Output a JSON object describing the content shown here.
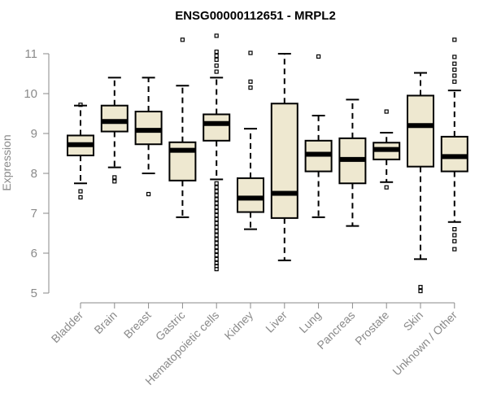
{
  "colors": {
    "box_fill": "#eee8d0",
    "box_stroke": "#000000",
    "axis": "#8a8a8a",
    "text": "#8a8a8a",
    "title": "#000000"
  },
  "chart_data": {
    "type": "boxplot",
    "title": "ENSG00000112651 - MRPL2",
    "xlabel": "",
    "ylabel": "Expression",
    "ylim": [
      5,
      11.5
    ],
    "yticks": [
      5,
      6,
      7,
      8,
      9,
      10,
      11
    ],
    "grid": false,
    "legend": "none",
    "categories": [
      "Bladder",
      "Brain",
      "Breast",
      "Gastric",
      "Hematopoietic cells",
      "Kidney",
      "Liver",
      "Lung",
      "Pancreas",
      "Prostate",
      "Skin",
      "Unknown / Other"
    ],
    "boxes": [
      {
        "category": "Bladder",
        "whisker_low": 7.75,
        "q1": 8.45,
        "median": 8.72,
        "q3": 8.95,
        "whisker_high": 9.7,
        "outliers": [
          7.4,
          7.55,
          9.72
        ]
      },
      {
        "category": "Brain",
        "whisker_low": 8.15,
        "q1": 9.05,
        "median": 9.3,
        "q3": 9.7,
        "whisker_high": 10.4,
        "outliers": [
          7.8,
          7.9
        ]
      },
      {
        "category": "Breast",
        "whisker_low": 8.0,
        "q1": 8.73,
        "median": 9.08,
        "q3": 9.55,
        "whisker_high": 10.4,
        "outliers": [
          7.48
        ]
      },
      {
        "category": "Gastric",
        "whisker_low": 6.9,
        "q1": 7.82,
        "median": 8.58,
        "q3": 8.78,
        "whisker_high": 10.2,
        "outliers": [
          11.35
        ]
      },
      {
        "category": "Hematopoietic cells",
        "whisker_low": 7.85,
        "q1": 8.82,
        "median": 9.25,
        "q3": 9.48,
        "whisker_high": 10.4,
        "outliers": [
          5.6,
          5.68,
          5.75,
          5.85,
          5.95,
          6.05,
          6.15,
          6.25,
          6.35,
          6.45,
          6.55,
          6.65,
          6.75,
          6.85,
          6.95,
          7.05,
          7.15,
          7.25,
          7.35,
          7.45,
          7.55,
          7.65,
          7.75,
          10.55,
          10.7,
          10.85,
          10.95,
          11.05,
          11.45
        ]
      },
      {
        "category": "Kidney",
        "whisker_low": 6.6,
        "q1": 7.03,
        "median": 7.38,
        "q3": 7.88,
        "whisker_high": 9.12,
        "outliers": [
          10.15,
          10.3,
          11.02
        ]
      },
      {
        "category": "Liver",
        "whisker_low": 5.82,
        "q1": 6.88,
        "median": 7.5,
        "q3": 9.75,
        "whisker_high": 11.0,
        "outliers": []
      },
      {
        "category": "Lung",
        "whisker_low": 6.9,
        "q1": 8.05,
        "median": 8.48,
        "q3": 8.82,
        "whisker_high": 9.45,
        "outliers": [
          10.93
        ]
      },
      {
        "category": "Pancreas",
        "whisker_low": 6.68,
        "q1": 7.75,
        "median": 8.35,
        "q3": 8.88,
        "whisker_high": 9.85,
        "outliers": []
      },
      {
        "category": "Prostate",
        "whisker_low": 7.78,
        "q1": 8.35,
        "median": 8.6,
        "q3": 8.77,
        "whisker_high": 9.02,
        "outliers": [
          7.65,
          9.55
        ]
      },
      {
        "category": "Skin",
        "whisker_low": 5.85,
        "q1": 8.17,
        "median": 9.2,
        "q3": 9.95,
        "whisker_high": 10.52,
        "outliers": [
          5.05,
          5.15
        ]
      },
      {
        "category": "Unknown / Other",
        "whisker_low": 6.78,
        "q1": 8.05,
        "median": 8.42,
        "q3": 8.92,
        "whisker_high": 10.08,
        "outliers": [
          6.1,
          6.3,
          6.45,
          6.6,
          10.3,
          10.45,
          10.6,
          10.75,
          10.92,
          11.35
        ]
      }
    ]
  }
}
